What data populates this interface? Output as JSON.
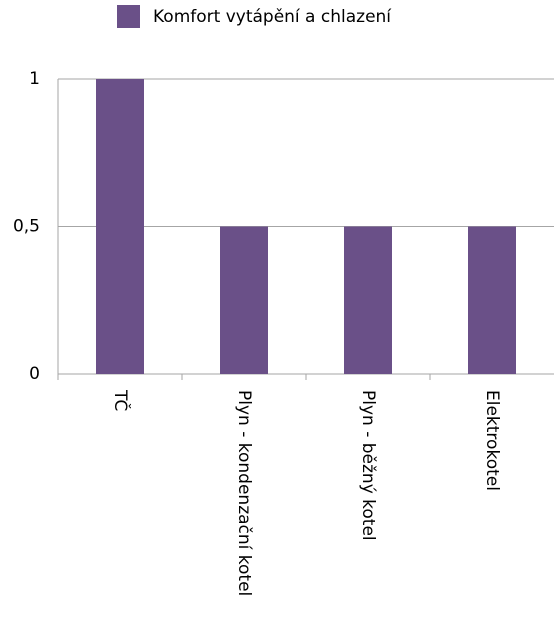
{
  "chart_data": {
    "type": "bar",
    "categories": [
      "TČ",
      "Plyn - kondenzační kotel",
      "Plyn - běžný kotel",
      "Elektrokotel"
    ],
    "series": [
      {
        "name": "Komfort vytápění a chlazení",
        "color": "#6a5088",
        "values": [
          1,
          0.5,
          0.5,
          0.5
        ]
      }
    ],
    "ylim": [
      0,
      1
    ],
    "yticks": [
      0,
      {
        "value": 0.5,
        "label": "0,5"
      },
      1
    ],
    "grid": true,
    "legend": "top"
  }
}
